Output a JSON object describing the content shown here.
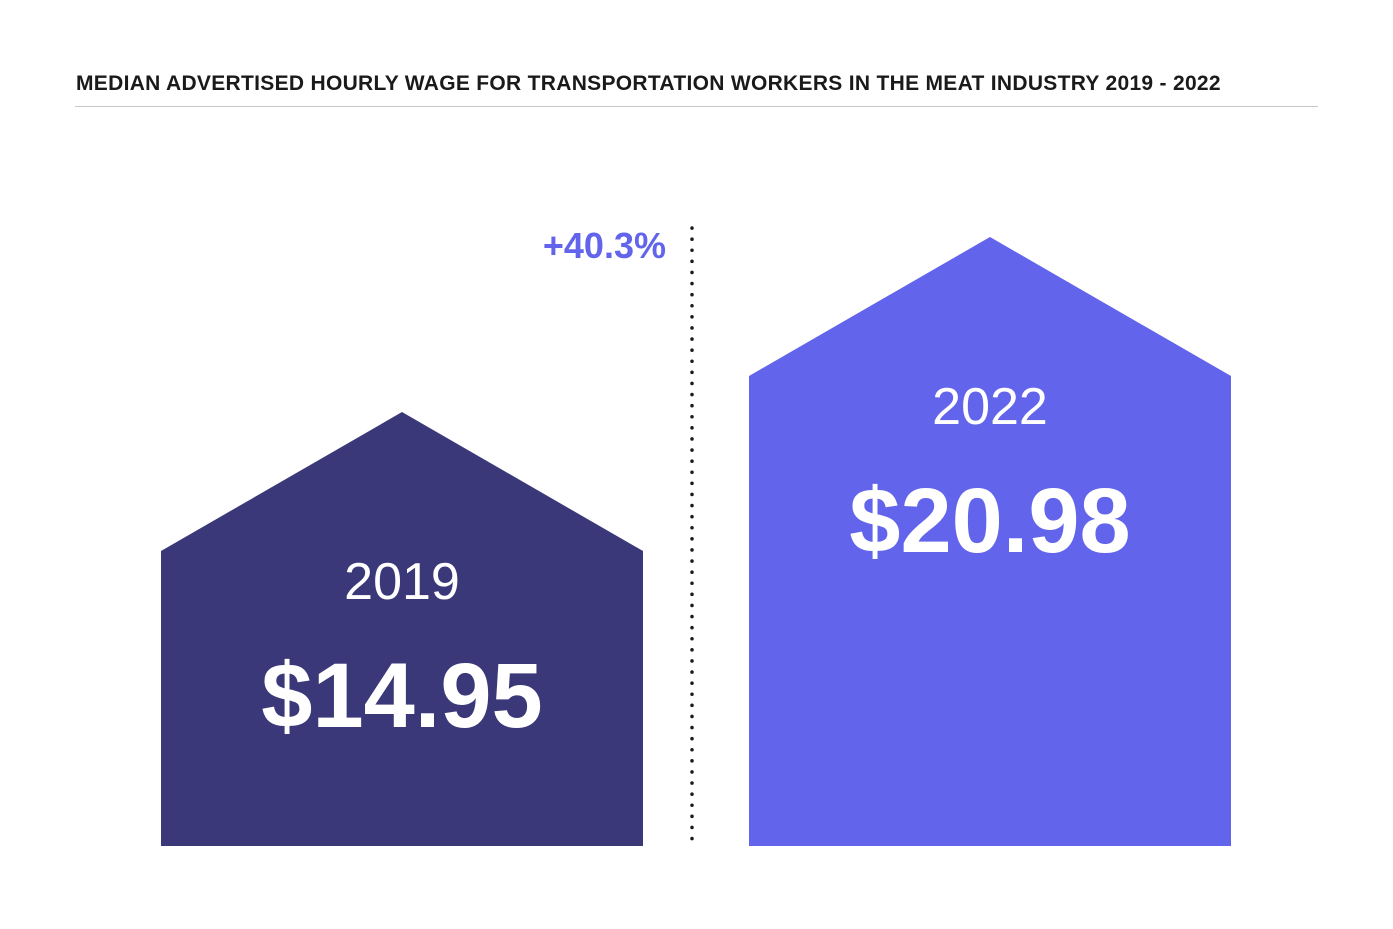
{
  "chart_data": {
    "type": "bar",
    "title": "MEDIAN ADVERTISED HOURLY WAGE FOR TRANSPORTATION WORKERS IN THE MEAT INDUSTRY 2019 - 2022",
    "categories": [
      "2019",
      "2022"
    ],
    "values": [
      14.95,
      20.98
    ],
    "value_labels": [
      "$14.95",
      "$20.98"
    ],
    "change_label": "+40.3%",
    "bar_shape": "house",
    "ylim": [
      0,
      20.98
    ],
    "grid": false,
    "colors": {
      "bar_2019": "#3a3879",
      "bar_2022": "#6264eb",
      "change_text": "#6264eb",
      "divider": "#1a1a1a"
    }
  }
}
